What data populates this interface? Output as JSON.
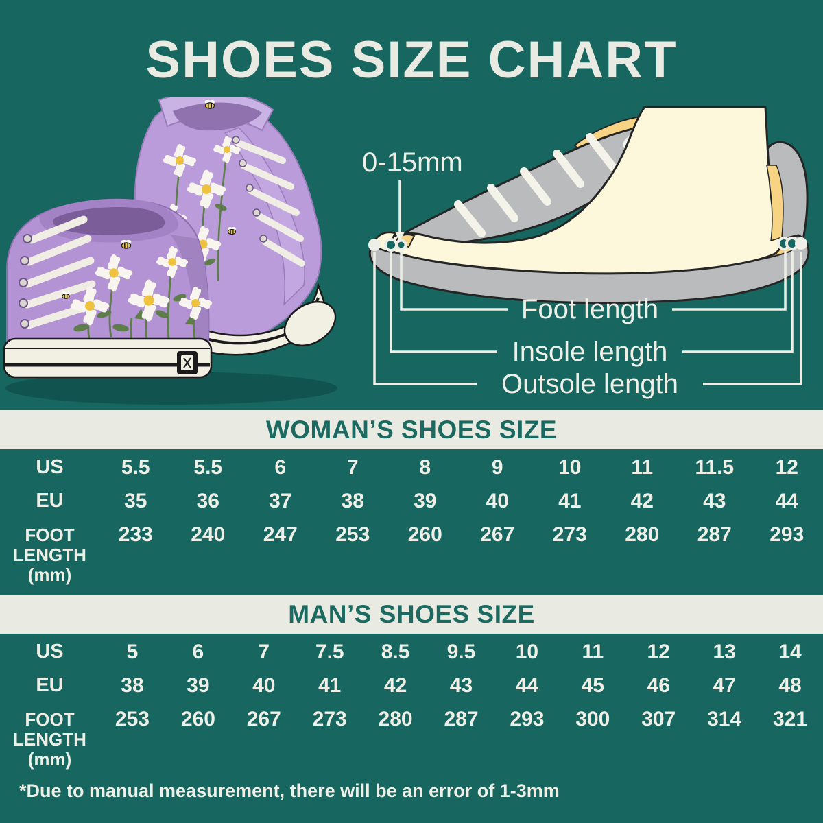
{
  "title": "SHOES SIZE CHART",
  "colors": {
    "background": "#17665f",
    "panel_bg": "#e9eae2",
    "panel_text": "#1b6a61",
    "light_text": "#eef0e8",
    "foot_fill": "#fdf8dc",
    "insole_yellow": "#f6d483",
    "shoe_gray": "#b9bbbd",
    "outline_dark": "#252525",
    "sneaker_purple": "#b795d6"
  },
  "diagram": {
    "gap_label": "0-15mm",
    "labels": [
      "Foot length",
      "Insole length",
      "Outsole length"
    ]
  },
  "womens": {
    "title": "WOMAN’S SHOES SIZE",
    "rows": [
      {
        "label": "US",
        "label_lines": [
          "US"
        ],
        "values": [
          "5.5",
          "5.5",
          "6",
          "7",
          "8",
          "9",
          "10",
          "11",
          "11.5",
          "12"
        ]
      },
      {
        "label": "EU",
        "label_lines": [
          "EU"
        ],
        "values": [
          "35",
          "36",
          "37",
          "38",
          "39",
          "40",
          "41",
          "42",
          "43",
          "44"
        ]
      },
      {
        "label": "FOOT LENGTH (mm)",
        "label_lines": [
          "FOOT",
          "LENGTH",
          "(mm)"
        ],
        "values": [
          "233",
          "240",
          "247",
          "253",
          "260",
          "267",
          "273",
          "280",
          "287",
          "293"
        ]
      }
    ]
  },
  "mens": {
    "title": "MAN’S SHOES SIZE",
    "rows": [
      {
        "label": "US",
        "label_lines": [
          "US"
        ],
        "values": [
          "5",
          "6",
          "7",
          "7.5",
          "8.5",
          "9.5",
          "10",
          "11",
          "12",
          "13",
          "14"
        ]
      },
      {
        "label": "EU",
        "label_lines": [
          "EU"
        ],
        "values": [
          "38",
          "39",
          "40",
          "41",
          "42",
          "43",
          "44",
          "45",
          "46",
          "47",
          "48"
        ]
      },
      {
        "label": "FOOT LENGTH (mm)",
        "label_lines": [
          "FOOT",
          "LENGTH",
          "(mm)"
        ],
        "values": [
          "253",
          "260",
          "267",
          "273",
          "280",
          "287",
          "293",
          "300",
          "307",
          "314",
          "321"
        ]
      }
    ]
  },
  "footnote": "*Due to manual measurement, there will be an error of 1-3mm",
  "chart_data": [
    {
      "type": "table",
      "title": "WOMAN’S SHOES SIZE",
      "row_headers": [
        "US",
        "EU",
        "FOOT LENGTH (mm)"
      ],
      "rows": [
        [
          "5.5",
          "5.5",
          "6",
          "7",
          "8",
          "9",
          "10",
          "11",
          "11.5",
          "12"
        ],
        [
          "35",
          "36",
          "37",
          "38",
          "39",
          "40",
          "41",
          "42",
          "43",
          "44"
        ],
        [
          "233",
          "240",
          "247",
          "253",
          "260",
          "267",
          "273",
          "280",
          "287",
          "293"
        ]
      ]
    },
    {
      "type": "table",
      "title": "MAN’S SHOES SIZE",
      "row_headers": [
        "US",
        "EU",
        "FOOT LENGTH (mm)"
      ],
      "rows": [
        [
          "5",
          "6",
          "7",
          "7.5",
          "8.5",
          "9.5",
          "10",
          "11",
          "12",
          "13",
          "14"
        ],
        [
          "38",
          "39",
          "40",
          "41",
          "42",
          "43",
          "44",
          "45",
          "46",
          "47",
          "48"
        ],
        [
          "253",
          "260",
          "267",
          "273",
          "280",
          "287",
          "293",
          "300",
          "307",
          "314",
          "321"
        ]
      ]
    }
  ]
}
